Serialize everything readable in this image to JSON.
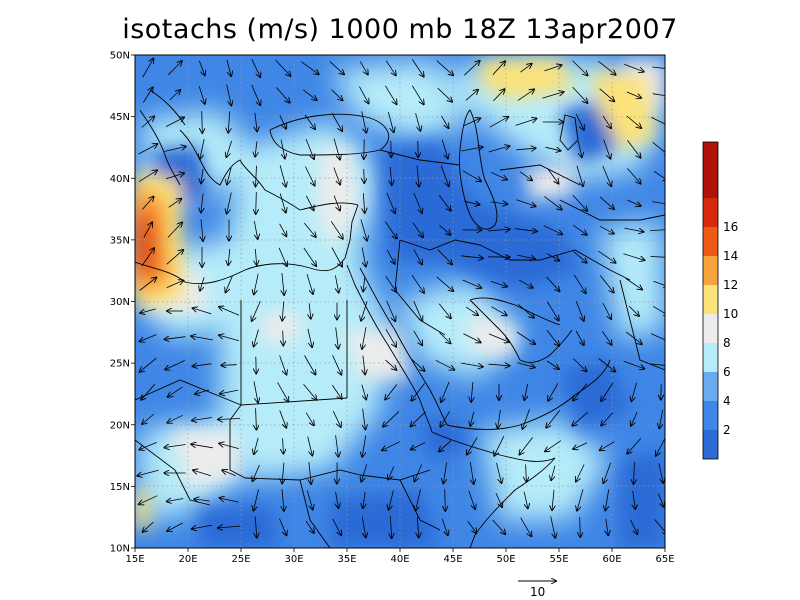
{
  "title": "isotachs (m/s) 1000 mb 18Z 13apr2007",
  "map": {
    "lon_range": [
      15,
      65
    ],
    "lat_range": [
      10,
      50
    ],
    "lon_ticks": [
      "15E",
      "20E",
      "25E",
      "30E",
      "35E",
      "40E",
      "45E",
      "50E",
      "55E",
      "60E",
      "65E"
    ],
    "lat_ticks": [
      "10N",
      "15N",
      "20N",
      "25N",
      "30N",
      "35N",
      "40N",
      "45N",
      "50N"
    ],
    "grid": "dotted",
    "colors": {
      "band_0_2": "#2c6bd6",
      "band_2_4": "#3f86e6",
      "band_4_6": "#6aabef",
      "band_6_8": "#b6ecf9",
      "band_8_10": "#ececec",
      "band_10_12": "#fbe27a",
      "band_12_14": "#f7a23b",
      "band_14_16": "#ec5a14",
      "band_16_18": "#d72a0c",
      "band_18_plus": "#b0130a",
      "coast": "#000000"
    }
  },
  "colorbar": {
    "labels": [
      "2",
      "4",
      "6",
      "8",
      "10",
      "12",
      "14",
      "16"
    ]
  },
  "vector_key": {
    "label": "10"
  }
}
